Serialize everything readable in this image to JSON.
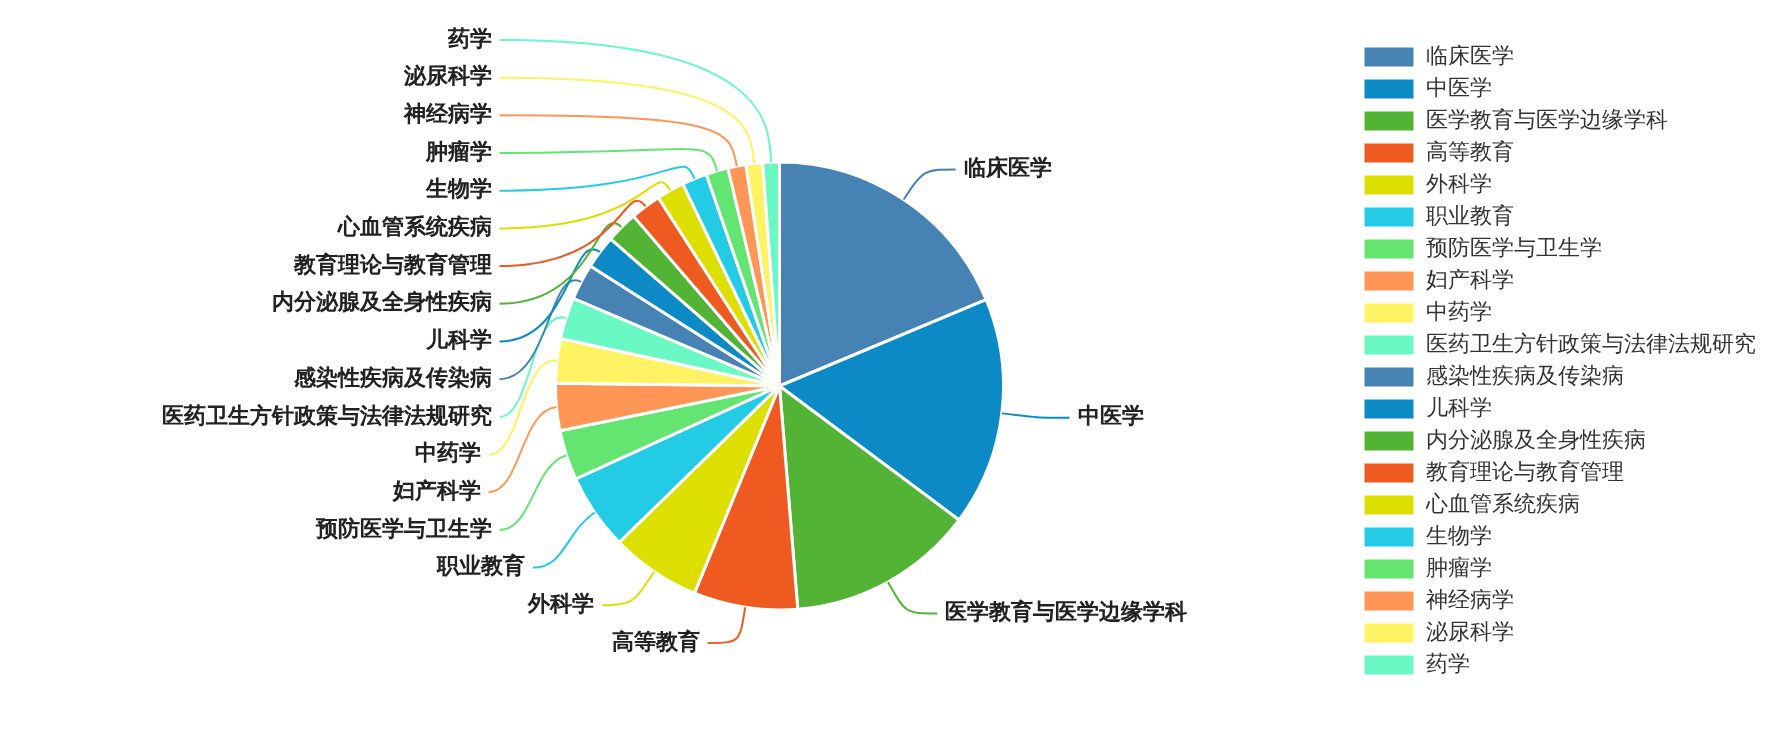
{
  "chart_data": {
    "type": "pie",
    "legend": "top right",
    "categories": [
      "临床医学",
      "中医学",
      "医学教育与医学边缘学科",
      "高等教育",
      "外科学",
      "职业教育",
      "预防医学与卫生学",
      "妇产科学",
      "中药学",
      "医药卫生方针政策与法律法规研究",
      "感染性疾病及传染病",
      "儿科学",
      "内分泌腺及全身性疾病",
      "教育理论与教育管理",
      "心血管系统疾病",
      "生物学",
      "肿瘤学",
      "神经病学",
      "泌尿科学",
      "药学"
    ],
    "values": [
      18.7,
      16.5,
      13.5,
      7.5,
      6.5,
      5.5,
      3.6,
      3.4,
      3.2,
      3,
      2.6,
      2.4,
      2.3,
      2.2,
      2,
      1.8,
      1.6,
      1.3,
      1.2,
      1.2
    ],
    "colors": [
      "#4682b4",
      "#0b8ac6",
      "#52b335",
      "#ee5a1f",
      "#dddf00",
      "#24cbe5",
      "#64e572",
      "#ff9655",
      "#fff263",
      "#6af9c4",
      "#4682b4",
      "#0b8ac6",
      "#52b335",
      "#ee5a1f",
      "#dddf00",
      "#24cbe5",
      "#64e572",
      "#ff9655",
      "#fff263",
      "#6af9c4"
    ]
  }
}
